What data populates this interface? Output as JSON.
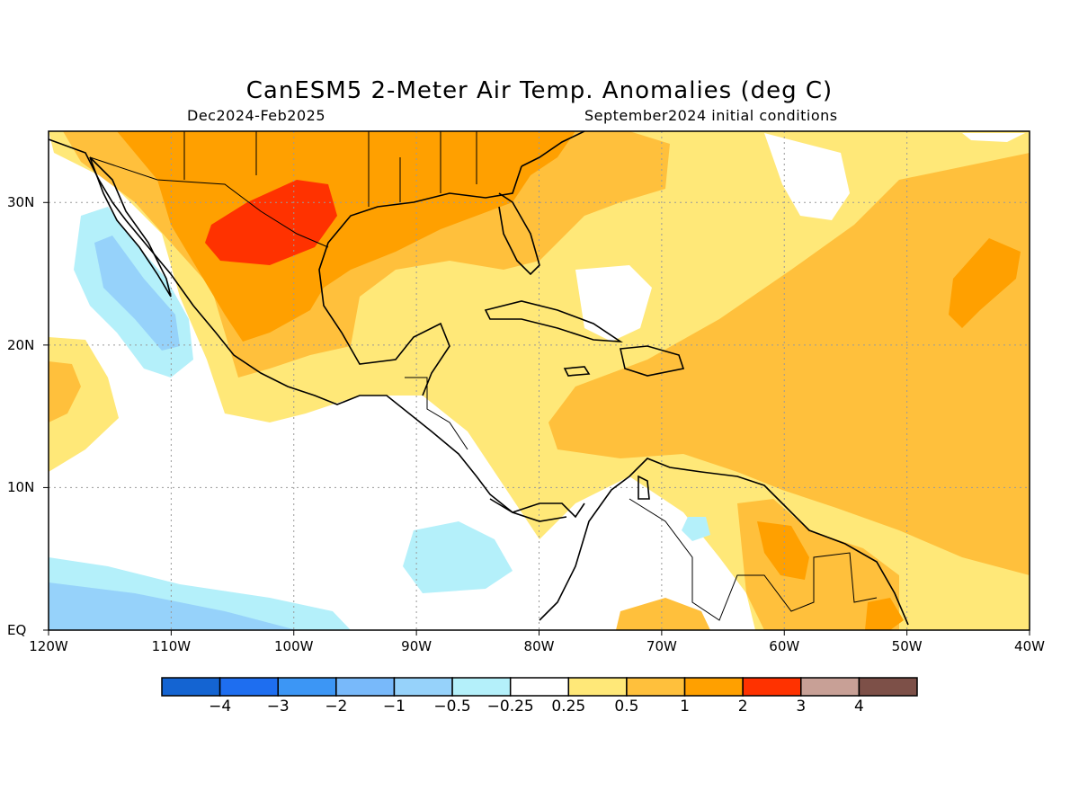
{
  "header": {
    "title": "CanESM5 2-Meter Air Temp. Anomalies (deg C)",
    "period": "Dec2024-Feb2025",
    "init": "September2024 initial conditions"
  },
  "map_data": {
    "lon_range": [
      -120,
      -40
    ],
    "lat_range": [
      0,
      35
    ],
    "lon_ticks": [
      {
        "value": -120,
        "label": "120W"
      },
      {
        "value": -110,
        "label": "110W"
      },
      {
        "value": -100,
        "label": "100W"
      },
      {
        "value": -90,
        "label": "90W"
      },
      {
        "value": -80,
        "label": "80W"
      },
      {
        "value": -70,
        "label": "70W"
      },
      {
        "value": -60,
        "label": "60W"
      },
      {
        "value": -50,
        "label": "50W"
      },
      {
        "value": -40,
        "label": "40W"
      }
    ],
    "lat_ticks": [
      {
        "value": 0,
        "label": "EQ"
      },
      {
        "value": 10,
        "label": "10N"
      },
      {
        "value": 20,
        "label": "20N"
      },
      {
        "value": 30,
        "label": "30N"
      }
    ],
    "grid": true
  },
  "colorbar": {
    "colors": [
      "#1464d2",
      "#1e6ef0",
      "#3c96f5",
      "#78b9fa",
      "#96d2fa",
      "#b4f0fa",
      "#ffffff",
      "#ffe878",
      "#ffc03c",
      "#ffa000",
      "#ff3200",
      "#c8a096",
      "#7d5048"
    ],
    "labels": [
      "-4",
      "-3",
      "-2",
      "-1",
      "-0.5",
      "-0.25",
      "0.25",
      "0.5",
      "1",
      "2",
      "3",
      "4"
    ]
  }
}
